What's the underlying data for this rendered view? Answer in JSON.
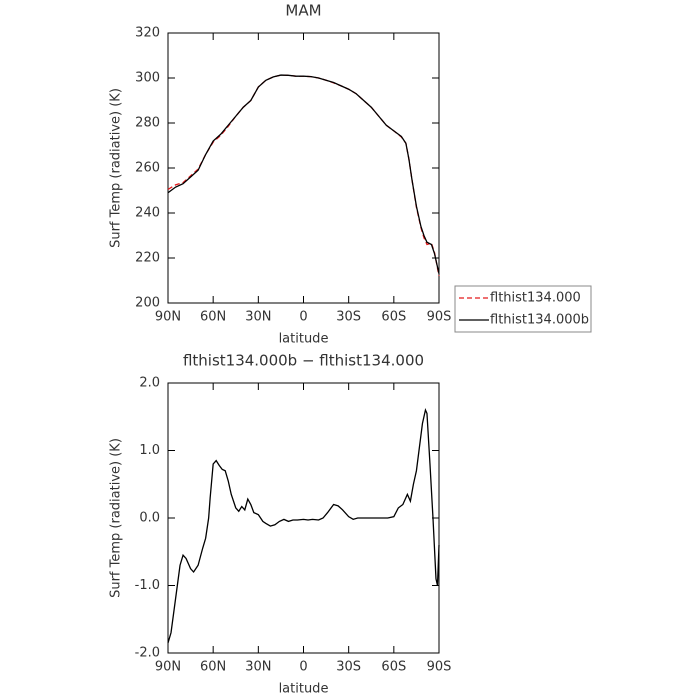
{
  "chart_data": [
    {
      "type": "line",
      "title": "MAM",
      "x_label": "latitude",
      "y_label": "Surf Temp (radiative) (K)",
      "x": [
        90,
        85,
        80,
        75,
        70,
        65,
        60,
        55,
        50,
        45,
        40,
        35,
        30,
        25,
        20,
        15,
        10,
        5,
        0,
        -5,
        -10,
        -15,
        -20,
        -25,
        -30,
        -35,
        -40,
        -45,
        -50,
        -55,
        -60,
        -65,
        -68,
        -70,
        -72,
        -75,
        -78,
        -80,
        -82,
        -85,
        -87,
        -90
      ],
      "series": [
        {
          "name": "flthist134.000",
          "color": "#e41a1c",
          "dash": true,
          "values": [
            250.5,
            252.5,
            253.5,
            256.5,
            259.5,
            266,
            271.5,
            274.5,
            278.5,
            283,
            287,
            290,
            296,
            299,
            300.5,
            301.3,
            301.2,
            300.8,
            300.8,
            300.6,
            300,
            299,
            297.8,
            296.5,
            295,
            293,
            290,
            287,
            283,
            279,
            276.5,
            273.8,
            271,
            264,
            255,
            242.5,
            233.5,
            229,
            226,
            226.5,
            222.5,
            212
          ]
        },
        {
          "name": "flthist134.000b",
          "color": "#000000",
          "dash": false,
          "values": [
            249,
            251.5,
            253,
            256,
            259,
            266,
            272,
            275,
            279,
            283,
            287,
            290,
            296,
            299,
            300.5,
            301.3,
            301.2,
            300.8,
            300.8,
            300.6,
            300,
            299,
            298,
            296.5,
            295,
            293,
            290,
            287,
            283,
            279,
            276.5,
            274,
            271,
            264,
            255,
            243,
            234,
            230,
            227,
            226,
            222,
            213
          ]
        }
      ],
      "xlim": [
        90,
        -90
      ],
      "xticks": [
        {
          "value": 90,
          "label": "90N"
        },
        {
          "value": 60,
          "label": "60N"
        },
        {
          "value": 30,
          "label": "30N"
        },
        0,
        {
          "value": -30,
          "label": "30S"
        },
        {
          "value": -60,
          "label": "60S"
        },
        {
          "value": -90,
          "label": "90S"
        }
      ],
      "ylim": [
        200,
        320
      ],
      "yticks": [
        200,
        220,
        240,
        260,
        280,
        300,
        320
      ],
      "legend": "right"
    },
    {
      "type": "line",
      "title": "flthist134.000b − flthist134.000",
      "x_label": "latitude",
      "y_label": "Surf Temp (radiative) (K)",
      "x": [
        90,
        88,
        85,
        82,
        80,
        78,
        75,
        73,
        70,
        67,
        65,
        63,
        62,
        60,
        58,
        56,
        54,
        52,
        50,
        48,
        45,
        43,
        41,
        39,
        37,
        35,
        33,
        30,
        27,
        25,
        22,
        19,
        16,
        13,
        10,
        7,
        4,
        0,
        -3,
        -6,
        -10,
        -13,
        -16,
        -20,
        -23,
        -26,
        -30,
        -33,
        -36,
        -40,
        -50,
        -56,
        -60,
        -63,
        -66,
        -69,
        -71,
        -73,
        -75,
        -77,
        -79,
        -81,
        -82,
        -84,
        -86,
        -88,
        -89,
        -90
      ],
      "series": [
        {
          "name": null,
          "color": "#000000",
          "dash": false,
          "values": [
            -1.85,
            -1.7,
            -1.2,
            -0.7,
            -0.55,
            -0.6,
            -0.75,
            -0.8,
            -0.7,
            -0.45,
            -0.3,
            0.0,
            0.3,
            0.8,
            0.85,
            0.78,
            0.72,
            0.7,
            0.55,
            0.35,
            0.15,
            0.1,
            0.17,
            0.12,
            0.28,
            0.2,
            0.08,
            0.05,
            -0.05,
            -0.08,
            -0.12,
            -0.1,
            -0.05,
            -0.02,
            -0.05,
            -0.03,
            -0.03,
            -0.02,
            -0.03,
            -0.02,
            -0.03,
            0.0,
            0.08,
            0.2,
            0.18,
            0.12,
            0.02,
            -0.02,
            0.0,
            0.0,
            0.0,
            0.0,
            0.02,
            0.15,
            0.2,
            0.35,
            0.25,
            0.5,
            0.7,
            1.05,
            1.4,
            1.6,
            1.55,
            0.8,
            0.0,
            -0.9,
            -1.0,
            -0.4
          ]
        }
      ],
      "xlim": [
        90,
        -90
      ],
      "xticks": [
        {
          "value": 90,
          "label": "90N"
        },
        {
          "value": 60,
          "label": "60N"
        },
        {
          "value": 30,
          "label": "30N"
        },
        0,
        {
          "value": -30,
          "label": "30S"
        },
        {
          "value": -60,
          "label": "60S"
        },
        {
          "value": -90,
          "label": "90S"
        }
      ],
      "ylim": [
        -2,
        2
      ],
      "yticks": [
        {
          "value": -2,
          "label": "-2.0"
        },
        {
          "value": -1,
          "label": "-1.0"
        },
        {
          "value": 0,
          "label": "0.0"
        },
        {
          "value": 1,
          "label": "1.0"
        },
        {
          "value": 2,
          "label": "2.0"
        }
      ]
    }
  ]
}
